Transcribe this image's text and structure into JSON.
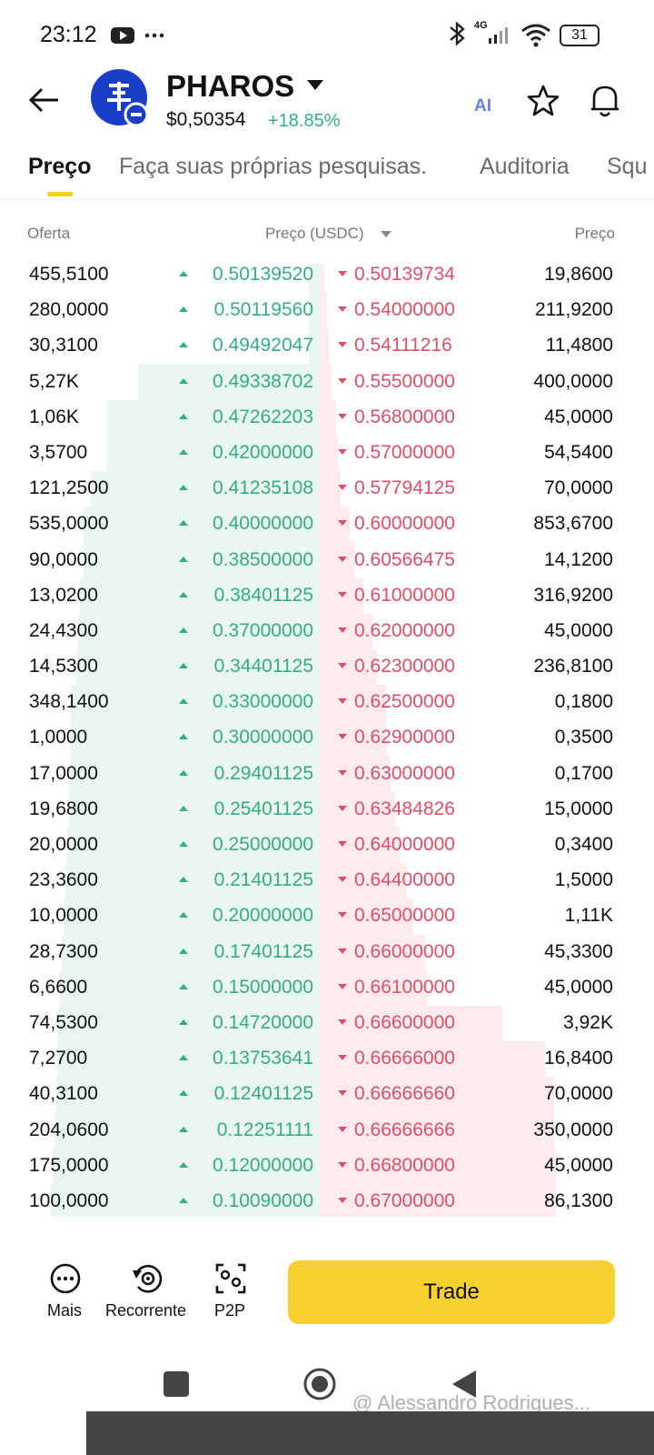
{
  "status_bar": {
    "time": "23:12",
    "network": "4G",
    "battery": "31"
  },
  "header": {
    "symbol": "PHAROS",
    "price": "$0,50354",
    "change": "+18.85%",
    "ai_label": "AI"
  },
  "tabs": [
    "Preço",
    "Faça suas próprias pesquisas.",
    "Auditoria",
    "Squ"
  ],
  "order_book": {
    "columns": [
      "Oferta",
      "Preço (USDC)",
      "Preço"
    ],
    "rows": [
      [
        "455,5100",
        "0.50139520",
        "0.50139734",
        "19,8600"
      ],
      [
        "280,0000",
        "0.50119560",
        "0.54000000",
        "211,9200"
      ],
      [
        "30,3100",
        "0.49492047",
        "0.54111216",
        "11,4800"
      ],
      [
        "5,27K",
        "0.49338702",
        "0.55500000",
        "400,0000"
      ],
      [
        "1,06K",
        "0.47262203",
        "0.56800000",
        "45,0000"
      ],
      [
        "3,5700",
        "0.42000000",
        "0.57000000",
        "54,5400"
      ],
      [
        "121,2500",
        "0.41235108",
        "0.57794125",
        "70,0000"
      ],
      [
        "535,0000",
        "0.40000000",
        "0.60000000",
        "853,6700"
      ],
      [
        "90,0000",
        "0.38500000",
        "0.60566475",
        "14,1200"
      ],
      [
        "13,0200",
        "0.38401125",
        "0.61000000",
        "316,9200"
      ],
      [
        "24,4300",
        "0.37000000",
        "0.62000000",
        "45,0000"
      ],
      [
        "14,5300",
        "0.34401125",
        "0.62300000",
        "236,8100"
      ],
      [
        "348,1400",
        "0.33000000",
        "0.62500000",
        "0,1800"
      ],
      [
        "1,0000",
        "0.30000000",
        "0.62900000",
        "0,3500"
      ],
      [
        "17,0000",
        "0.29401125",
        "0.63000000",
        "0,1700"
      ],
      [
        "19,6800",
        "0.25401125",
        "0.63484826",
        "15,0000"
      ],
      [
        "20,0000",
        "0.25000000",
        "0.64000000",
        "0,3400"
      ],
      [
        "23,3600",
        "0.21401125",
        "0.64400000",
        "1,5000"
      ],
      [
        "10,0000",
        "0.20000000",
        "0.65000000",
        "1,11K"
      ],
      [
        "28,7300",
        "0.17401125",
        "0.66000000",
        "45,3300"
      ],
      [
        "6,6600",
        "0.15000000",
        "0.66100000",
        "45,0000"
      ],
      [
        "74,5300",
        "0.14720000",
        "0.66600000",
        "3,92K"
      ],
      [
        "7,2700",
        "0.13753641",
        "0.66666000",
        "16,8400"
      ],
      [
        "40,3100",
        "0.12401125",
        "0.66666660",
        "70,0000"
      ],
      [
        "204,0600",
        "0.12251111",
        "0.66666666",
        "350,0000"
      ],
      [
        "175,0000",
        "0.12000000",
        "0.66800000",
        "45,0000"
      ],
      [
        "100,0000",
        "0.10090000",
        "0.67000000",
        "86,1300"
      ]
    ]
  },
  "bottom_bar": {
    "actions": [
      "Mais",
      "Recorrente",
      "P2P"
    ],
    "trade_button": "Trade"
  },
  "watermark": "@ Alessandro Rodrigues..."
}
